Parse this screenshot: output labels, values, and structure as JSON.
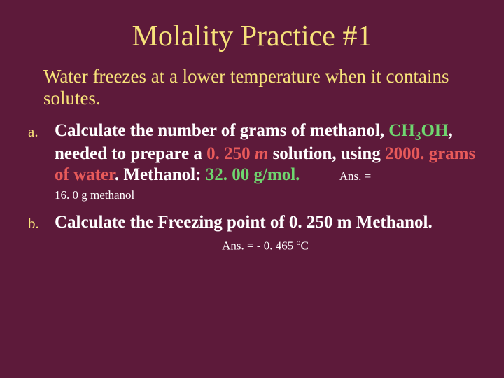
{
  "background_color": "#5d1a3a",
  "title_color": "#f7e27a",
  "accent_green": "#6fd66f",
  "accent_red": "#e85a5a",
  "body_white": "#ffffff",
  "title": "Molality Practice #1",
  "intro": "Water freezes at a lower temperature when it contains solutes.",
  "items": {
    "a": {
      "bullet": "a.",
      "text_1": "Calculate the number of grams of methanol, ",
      "formula_prefix": "CH",
      "formula_sub": "3",
      "formula_suffix": "OH",
      "text_2": ", needed to prepare a ",
      "value_1": "0. 250 ",
      "value_1_unit": "m",
      "text_3": " solution, using ",
      "value_2": "2000. grams of water",
      "text_4": ". Methanol: ",
      "value_3": "32. 00 g/mol.",
      "ans_label": "Ans. = ",
      "ans_value": "16. 0 g methanol"
    },
    "b": {
      "bullet": "b.",
      "text_1": "Calculate the Freezing point of 0. 250 m Methanol.",
      "ans_label": "Ans. = ",
      "ans_value": "- 0. 465 ",
      "ans_unit_sup": "o",
      "ans_unit": "C"
    }
  }
}
